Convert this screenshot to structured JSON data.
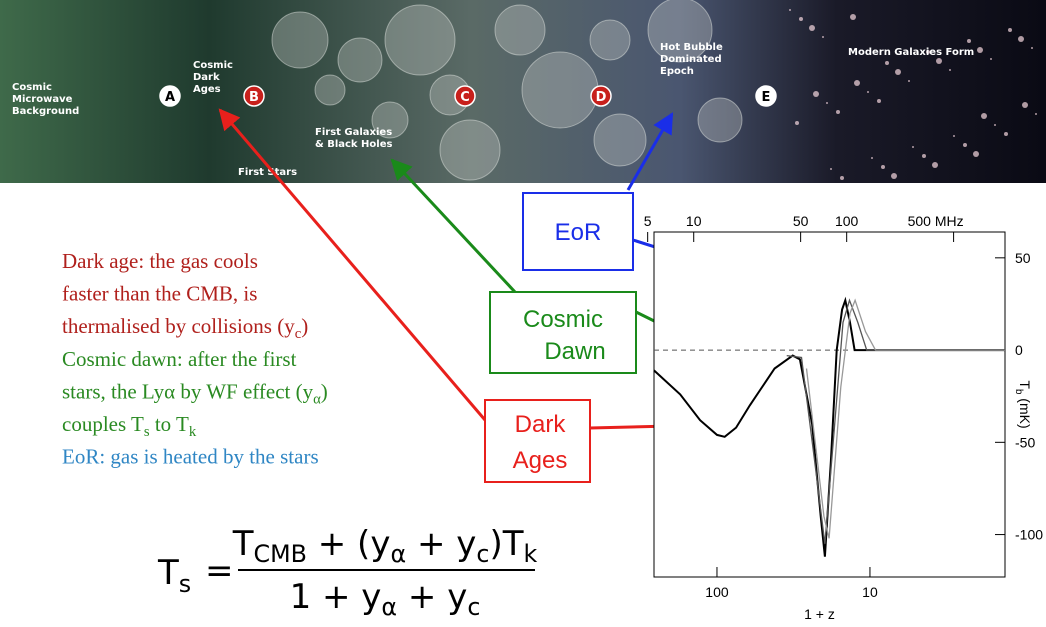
{
  "banner": {
    "cmb": [
      "Cosmic",
      "Microwave",
      "Background"
    ],
    "dark_ages": [
      "Cosmic",
      "Dark",
      "Ages"
    ],
    "first_stars": "First Stars",
    "first_galaxies": [
      "First Galaxies",
      "& Black Holes"
    ],
    "hot_bubble": [
      "Hot Bubble",
      "Dominated",
      "Epoch"
    ],
    "modern": "Modern Galaxies Form",
    "markers": [
      "A",
      "B",
      "C",
      "D",
      "E"
    ]
  },
  "boxes": {
    "eor": [
      "EoR"
    ],
    "cosmic_dawn": [
      "Cosmic",
      "Dawn"
    ],
    "dark_ages": [
      "Dark",
      "Ages"
    ]
  },
  "notes": [
    {
      "color": "#b0201c",
      "lines": [
        [
          "Dark age: the gas cools"
        ],
        [
          "faster than the CMB, is"
        ],
        [
          "thermalised by collisions (y",
          {
            "sub": "c"
          },
          ")"
        ]
      ]
    },
    {
      "color": "#2a8a22",
      "lines": [
        [
          "Cosmic dawn: after the first"
        ],
        [
          "stars, the Lyα by WF effect  (y",
          {
            "sub": "α"
          },
          ")"
        ],
        [
          "couples T",
          {
            "sub": "s"
          },
          " to T",
          {
            "sub": "k"
          }
        ]
      ]
    },
    {
      "color": "#2f86c4",
      "lines": [
        [
          "EoR: gas is heated by the stars"
        ]
      ]
    }
  ],
  "formula": {
    "lhs": [
      "T",
      {
        "sub": "s"
      }
    ],
    "eq": "=",
    "numerator": [
      "T",
      {
        "sub": "CMB"
      },
      " + (y",
      {
        "sub": "α"
      },
      " + y",
      {
        "sub": "c"
      },
      ")T",
      {
        "sub": "k"
      }
    ],
    "denominator": [
      "1 + y",
      {
        "sub": "α"
      },
      " + y",
      {
        "sub": "c"
      }
    ]
  },
  "chart_data": {
    "type": "line",
    "xlabel": "1 + z",
    "ylabel": [
      "T",
      {
        "sub": "b"
      },
      " (mK)"
    ],
    "xscale": "log",
    "xlim": [
      258,
      1.31
    ],
    "xticks": [
      100,
      10
    ],
    "x2lim": [
      5.5,
      1084
    ],
    "x2ticks": [
      5,
      10,
      50,
      100,
      {
        "value": 500,
        "label": "500 MHz"
      }
    ],
    "ylim": [
      -123,
      64
    ],
    "yticks": [
      50,
      0,
      -50,
      -100
    ],
    "series": [
      {
        "color": "#000000",
        "x": [
          258,
          174,
          129,
          100,
          89,
          75,
          61,
          42,
          32,
          28.7,
          23.9,
          21,
          19.7,
          18,
          16.5,
          15.2,
          14.5,
          13.5,
          12.6,
          10,
          1.31
        ],
        "values": [
          -11,
          -24,
          -38,
          -46,
          -47,
          -42,
          -30,
          -10,
          -3,
          -5,
          -40,
          -90,
          -112,
          -60,
          0,
          22,
          27,
          15,
          0,
          0,
          0
        ]
      },
      {
        "color": "#555555",
        "x": [
          35,
          28,
          23,
          19.7,
          17,
          15,
          13.6,
          12,
          10.5,
          1.31
        ],
        "values": [
          -3,
          -4,
          -60,
          -105,
          -40,
          15,
          27,
          15,
          0,
          0
        ]
      },
      {
        "color": "#999999",
        "x": [
          26,
          20,
          18.5,
          15.5,
          13.5,
          12.5,
          10.7,
          9.2,
          1.31
        ],
        "values": [
          -10,
          -90,
          -102,
          -20,
          20,
          27,
          10,
          0,
          0
        ]
      }
    ]
  }
}
